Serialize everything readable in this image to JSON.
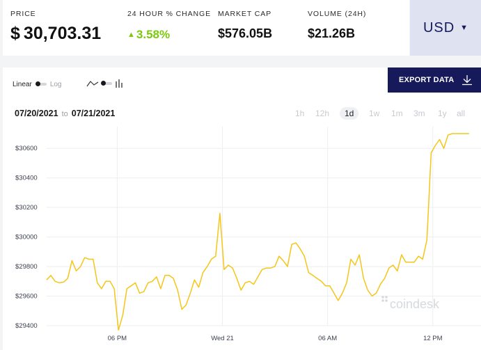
{
  "stats": {
    "price": {
      "label": "PRICE",
      "value": "$ 30,703.31"
    },
    "change": {
      "label": "24 HOUR % CHANGE",
      "value": "3.58%",
      "direction_icon": "triangle-up-icon",
      "color": "#7cc80b"
    },
    "market_cap": {
      "label": "MARKET CAP",
      "value": "$576.05B"
    },
    "volume": {
      "label": "VOLUME (24H)",
      "value": "$21.26B"
    }
  },
  "currency": {
    "label": "USD",
    "icon": "caret-down-icon",
    "bg_color": "#dfe2f0",
    "text_color": "#16195a"
  },
  "controls": {
    "scale_linear": "Linear",
    "scale_log": "Log",
    "chart_type_icons": [
      "line-chart-icon",
      "bar-chart-icon"
    ]
  },
  "export": {
    "label": "EXPORT DATA",
    "icon": "download-icon",
    "bg_color": "#16195a"
  },
  "date_range": {
    "from": "07/20/2021",
    "sep": "to",
    "to": "07/21/2021"
  },
  "time_ranges": [
    {
      "label": "1h",
      "active": false
    },
    {
      "label": "12h",
      "active": false
    },
    {
      "label": "1d",
      "active": true
    },
    {
      "label": "1w",
      "active": false
    },
    {
      "label": "1m",
      "active": false
    },
    {
      "label": "3m",
      "active": false
    },
    {
      "label": "1y",
      "active": false
    },
    {
      "label": "all",
      "active": false
    }
  ],
  "watermark": "coindesk",
  "chart_data": {
    "type": "line",
    "color": "#f5c518",
    "grid": true,
    "ylim": [
      29400,
      30700
    ],
    "yticks": [
      29400,
      29600,
      29800,
      30000,
      30200,
      30400,
      30600
    ],
    "ytick_labels": [
      "$29400",
      "$29600",
      "$29800",
      "$30000",
      "$30200",
      "$30400",
      "$30600"
    ],
    "xlim": [
      0,
      100
    ],
    "xticks": [
      {
        "x": 16.7,
        "label": "06 PM"
      },
      {
        "x": 41.6,
        "label": "Wed 21"
      },
      {
        "x": 66.5,
        "label": "06 AM"
      },
      {
        "x": 91.4,
        "label": "12 PM"
      }
    ],
    "x": [
      0,
      1,
      2,
      3,
      4,
      5,
      6,
      7,
      8,
      9,
      10,
      11,
      12,
      13,
      14,
      15,
      16,
      17,
      18,
      19,
      20,
      21,
      22,
      23,
      24,
      25,
      26,
      27,
      28,
      29,
      30,
      31,
      32,
      33,
      34,
      35,
      36,
      37,
      38,
      39,
      40,
      41,
      42,
      43,
      44,
      45,
      46,
      47,
      48,
      49,
      50,
      51,
      52,
      53,
      54,
      55,
      56,
      57,
      58,
      59,
      60,
      61,
      62,
      63,
      64,
      65,
      66,
      67,
      68,
      69,
      70,
      71,
      72,
      73,
      74,
      75,
      76,
      77,
      78,
      79,
      80,
      81,
      82,
      83,
      84,
      85,
      86,
      87,
      88,
      89,
      90,
      91,
      92,
      93,
      94,
      95,
      96,
      97,
      98,
      99,
      100
    ],
    "y": [
      29710,
      29740,
      29700,
      29690,
      29695,
      29720,
      29840,
      29770,
      29800,
      29860,
      29850,
      29850,
      29690,
      29650,
      29700,
      29700,
      29650,
      29370,
      29470,
      29650,
      29670,
      29690,
      29620,
      29630,
      29690,
      29700,
      29730,
      29650,
      29740,
      29740,
      29720,
      29640,
      29510,
      29540,
      29620,
      29710,
      29660,
      29760,
      29800,
      29850,
      29870,
      30160,
      29780,
      29810,
      29790,
      29720,
      29640,
      29690,
      29700,
      29680,
      29730,
      29780,
      29790,
      29790,
      29800,
      29870,
      29840,
      29800,
      29950,
      29960,
      29920,
      29870,
      29760,
      29740,
      29720,
      29700,
      29670,
      29670,
      29620,
      29570,
      29620,
      29690,
      29850,
      29810,
      29880,
      29720,
      29640,
      29600,
      29620,
      29680,
      29720,
      29790,
      29810,
      29770,
      29880,
      29830,
      29830,
      29830,
      29870,
      29850,
      29980,
      30570,
      30620,
      30660,
      30600,
      30690,
      30700,
      30700,
      30700,
      30700,
      30700
    ]
  }
}
